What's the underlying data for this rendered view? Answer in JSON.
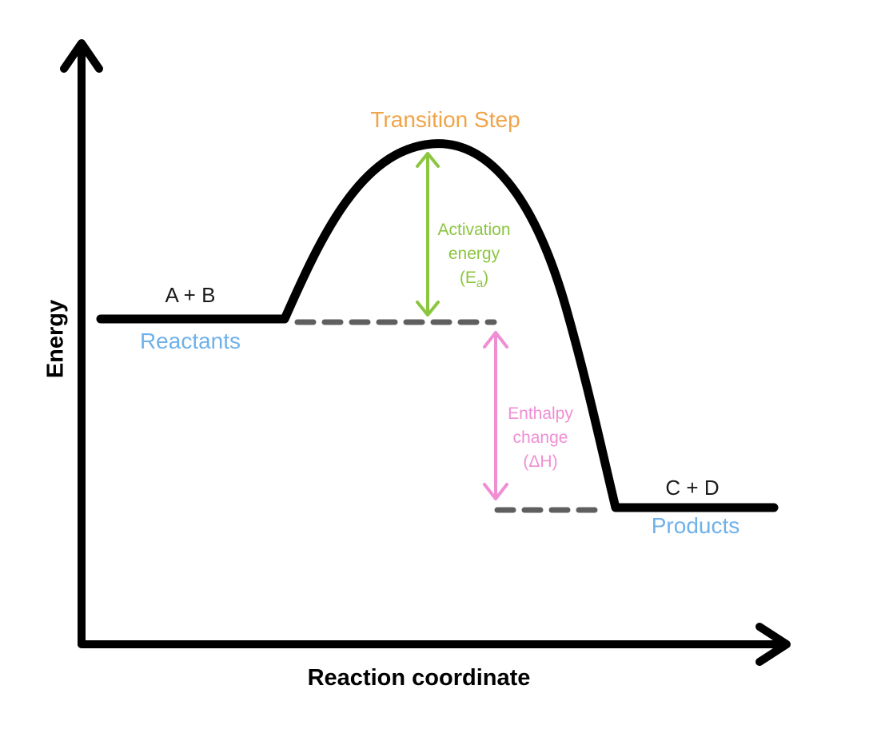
{
  "axes": {
    "y_label": "Energy",
    "x_label": "Reaction coordinate"
  },
  "transition": {
    "label": "Transition Step"
  },
  "reactants": {
    "species": "A + B",
    "label": "Reactants"
  },
  "products": {
    "species": "C + D",
    "label": "Products"
  },
  "activation_energy": {
    "line1": "Activation",
    "line2": "energy",
    "line3_prefix": "(E",
    "line3_sub": "a",
    "line3_suffix": ")"
  },
  "enthalpy_change": {
    "line1": "Enthalpy",
    "line2": "change",
    "line3": "(ΔH)"
  },
  "colors": {
    "curve": "#000000",
    "axes": "#000000",
    "dashed_levels": "#5f5f5f",
    "transition_label": "#f0a448",
    "state_labels": "#6fb1ea",
    "activation": "#8cc540",
    "enthalpy": "#f08ed3",
    "species_text": "#1a1a1a"
  },
  "icons": {
    "y_axis_arrowhead": "arrowhead-up-icon",
    "x_axis_arrowhead": "arrowhead-right-icon",
    "activation_arrow": "double-arrow-vertical-icon",
    "enthalpy_arrow": "double-arrow-vertical-icon"
  }
}
